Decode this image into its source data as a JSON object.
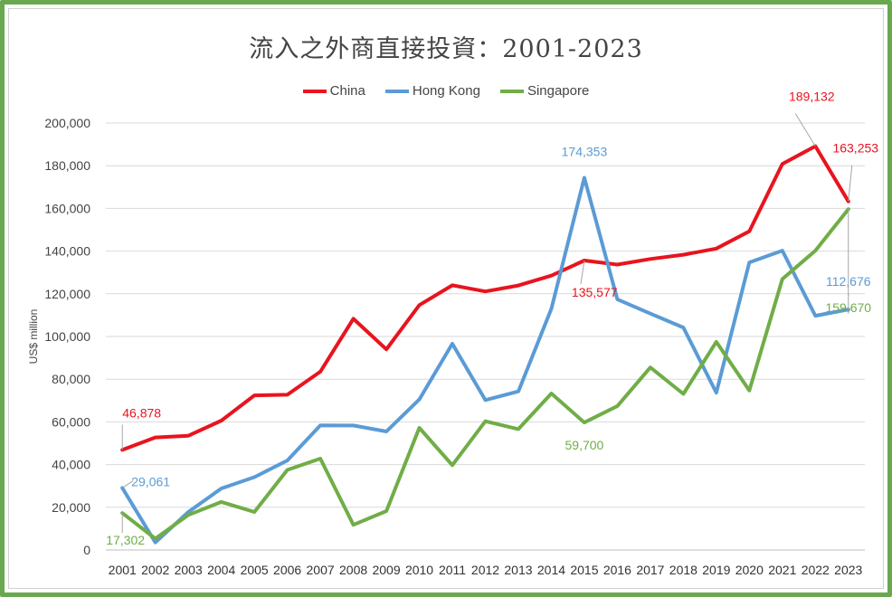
{
  "chart_data": {
    "type": "line",
    "title": "流入之外商直接投資：2001-2023",
    "ylabel": "US$ million",
    "xlabel": "",
    "ylim": [
      0,
      200000
    ],
    "yticks": [
      "0",
      "20,000",
      "40,000",
      "60,000",
      "80,000",
      "100,000",
      "120,000",
      "140,000",
      "160,000",
      "180,000",
      "200,000"
    ],
    "categories": [
      "2001",
      "2002",
      "2003",
      "2004",
      "2005",
      "2006",
      "2007",
      "2008",
      "2009",
      "2010",
      "2011",
      "2012",
      "2013",
      "2014",
      "2015",
      "2016",
      "2017",
      "2018",
      "2019",
      "2020",
      "2021",
      "2022",
      "2023"
    ],
    "legend_position": "top",
    "grid": true,
    "series": [
      {
        "name": "China",
        "color": "#e8141e",
        "values": [
          46878,
          52700,
          53500,
          60600,
          72400,
          72700,
          83500,
          108300,
          94000,
          114700,
          124000,
          121100,
          123900,
          128500,
          135577,
          133700,
          136300,
          138300,
          141200,
          149300,
          180800,
          189132,
          163253
        ]
      },
      {
        "name": "Hong Kong",
        "color": "#5b9bd5",
        "values": [
          29061,
          3500,
          17800,
          28800,
          34100,
          41900,
          58400,
          58300,
          55500,
          70500,
          96600,
          70200,
          74300,
          113000,
          174353,
          117400,
          110700,
          104200,
          73700,
          134700,
          140200,
          109700,
          112676
        ]
      },
      {
        "name": "Singapore",
        "color": "#70ad47",
        "values": [
          17302,
          5300,
          16400,
          22500,
          17800,
          37500,
          42800,
          11800,
          18200,
          57200,
          39700,
          60300,
          56600,
          73300,
          59700,
          67400,
          85500,
          73100,
          97500,
          74700,
          126900,
          140200,
          159670
        ]
      }
    ],
    "annotations": [
      {
        "series": "China",
        "category": "2001",
        "text": "46,878"
      },
      {
        "series": "China",
        "category": "2015",
        "text": "135,577"
      },
      {
        "series": "China",
        "category": "2022",
        "text": "189,132"
      },
      {
        "series": "China",
        "category": "2023",
        "text": "163,253"
      },
      {
        "series": "Hong Kong",
        "category": "2001",
        "text": "29,061"
      },
      {
        "series": "Hong Kong",
        "category": "2015",
        "text": "174,353"
      },
      {
        "series": "Hong Kong",
        "category": "2023",
        "text": "112,676"
      },
      {
        "series": "Singapore",
        "category": "2001",
        "text": "17,302"
      },
      {
        "series": "Singapore",
        "category": "2015",
        "text": "59,700"
      },
      {
        "series": "Singapore",
        "category": "2023",
        "text": "159,670"
      }
    ]
  }
}
